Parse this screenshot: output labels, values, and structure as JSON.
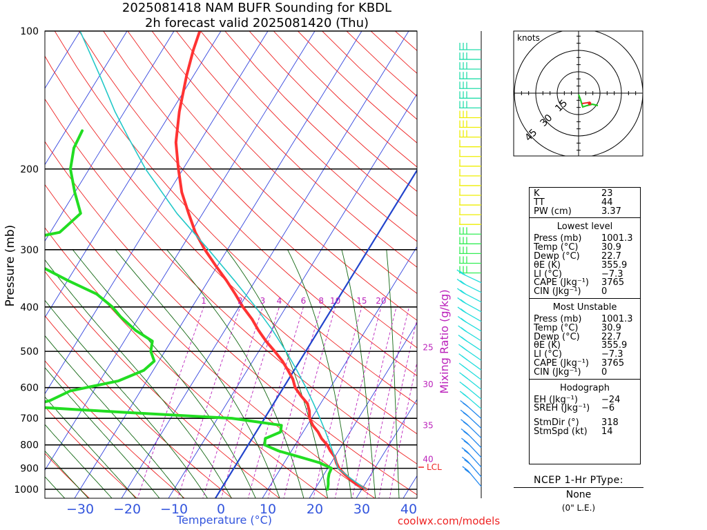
{
  "title": {
    "line1": "2025081418 NAM BUFR Sounding for KBDL",
    "line2": "2h forecast valid 2025081420 (Thu)"
  },
  "chart_data": {
    "type": "line",
    "title": "2025081418 NAM BUFR Sounding for KBDL",
    "subtitle": "2h forecast valid 2025081420 (Thu)",
    "xlabel": "Temperature (°C)",
    "ylabel": "Pressure (mb)",
    "y_scale": "log",
    "y_ticks": [
      100,
      200,
      300,
      400,
      500,
      600,
      700,
      800,
      900,
      1000
    ],
    "x_ticks": [
      -30,
      -20,
      -10,
      0,
      10,
      20,
      30,
      40
    ],
    "mixing_ratio_label": "Mixing Ratio (g/kg)",
    "mixing_ratio_ticks": [
      "1",
      "2",
      "3",
      "4",
      "6",
      "8",
      "10",
      "15",
      "20",
      "25",
      "30",
      "35",
      "40"
    ],
    "lcl_label": "LCL",
    "lcl_pressure": 895,
    "colors": {
      "temperature": "#ff3333",
      "dewpoint": "#22dd22",
      "parcel": "#22c8c8",
      "isotherm": "#3344dd",
      "dry_adiabat": "#ee2222",
      "moist_adiabat": "#116611",
      "mixing_ratio": "#bb22bb",
      "freezing_isotherm": "#2244cc"
    },
    "series": [
      {
        "name": "Temperature",
        "points": [
          [
            1000,
            30.9
          ],
          [
            975,
            28.4
          ],
          [
            950,
            26.2
          ],
          [
            925,
            24.2
          ],
          [
            900,
            22.4
          ],
          [
            875,
            21.1
          ],
          [
            850,
            20.0
          ],
          [
            825,
            18.3
          ],
          [
            800,
            16.8
          ],
          [
            775,
            14.8
          ],
          [
            750,
            13.2
          ],
          [
            725,
            11.2
          ],
          [
            700,
            9.6
          ],
          [
            675,
            8.6
          ],
          [
            650,
            7.2
          ],
          [
            625,
            4.8
          ],
          [
            600,
            2.5
          ],
          [
            575,
            0.9
          ],
          [
            550,
            -1.3
          ],
          [
            525,
            -3.7
          ],
          [
            500,
            -6.6
          ],
          [
            475,
            -9.8
          ],
          [
            450,
            -12.8
          ],
          [
            425,
            -15.7
          ],
          [
            400,
            -19.2
          ],
          [
            375,
            -22.5
          ],
          [
            350,
            -26.2
          ],
          [
            325,
            -30.4
          ],
          [
            300,
            -34.8
          ],
          [
            275,
            -39.1
          ],
          [
            250,
            -43.0
          ],
          [
            225,
            -47.2
          ],
          [
            200,
            -51.0
          ],
          [
            175,
            -55.0
          ],
          [
            150,
            -58.3
          ],
          [
            125,
            -61.5
          ],
          [
            110,
            -63.4
          ],
          [
            100,
            -64.5
          ]
        ]
      },
      {
        "name": "Dewpoint",
        "points": [
          [
            1000,
            22.7
          ],
          [
            975,
            22.2
          ],
          [
            950,
            21.5
          ],
          [
            925,
            21.0
          ],
          [
            900,
            20.8
          ],
          [
            875,
            17.5
          ],
          [
            850,
            12.5
          ],
          [
            825,
            7.3
          ],
          [
            800,
            3.5
          ],
          [
            775,
            2.8
          ],
          [
            750,
            5.2
          ],
          [
            725,
            4.5
          ],
          [
            700,
            -7.0
          ],
          [
            680,
            -30.0
          ],
          [
            660,
            -52.0
          ],
          [
            640,
            -48.0
          ],
          [
            610,
            -45.0
          ],
          [
            580,
            -36.0
          ],
          [
            550,
            -32.0
          ],
          [
            525,
            -31.0
          ],
          [
            500,
            -33.0
          ],
          [
            475,
            -34.0
          ],
          [
            450,
            -39.0
          ],
          [
            420,
            -44.0
          ],
          [
            400,
            -47.0
          ],
          [
            375,
            -52.0
          ],
          [
            350,
            -60.0
          ],
          [
            325,
            -68.0
          ],
          [
            300,
            -76.0
          ],
          [
            290,
            -78.0
          ],
          [
            275,
            -68.0
          ],
          [
            250,
            -66.0
          ],
          [
            225,
            -70.0
          ],
          [
            200,
            -74.0
          ],
          [
            180,
            -76.0
          ],
          [
            165,
            -76.5
          ]
        ]
      },
      {
        "name": "Parcel",
        "points": [
          [
            1000,
            30.9
          ],
          [
            950,
            26.5
          ],
          [
            900,
            22.2
          ],
          [
            850,
            20.0
          ],
          [
            800,
            17.5
          ],
          [
            750,
            14.8
          ],
          [
            700,
            11.8
          ],
          [
            650,
            8.5
          ],
          [
            600,
            4.8
          ],
          [
            550,
            0.6
          ],
          [
            500,
            -4.2
          ],
          [
            450,
            -9.8
          ],
          [
            400,
            -16.5
          ],
          [
            350,
            -24.5
          ],
          [
            300,
            -34.0
          ],
          [
            250,
            -45.5
          ],
          [
            200,
            -58.0
          ],
          [
            170,
            -66.0
          ],
          [
            150,
            -72.0
          ],
          [
            125,
            -80.0
          ],
          [
            100,
            -90.0
          ]
        ]
      }
    ],
    "hodograph": {
      "units": "knots",
      "ring_labels": [
        "15",
        "30",
        "45"
      ]
    },
    "wind_barb_levels": 46
  },
  "indices": {
    "top": [
      {
        "k": "K",
        "v": "23"
      },
      {
        "k": "TT",
        "v": "44"
      },
      {
        "k": "PW (cm)",
        "v": "3.37"
      }
    ],
    "lowest_title": "Lowest level",
    "lowest": [
      {
        "k": "Press (mb)",
        "v": "1001.3"
      },
      {
        "k": "Temp (°C)",
        "v": "30.9"
      },
      {
        "k": "Dewp (°C)",
        "v": "22.7"
      },
      {
        "k": "θE (K)",
        "v": "355.9"
      },
      {
        "k": "LI (°C)",
        "v": "−7.3"
      },
      {
        "k": "CAPE (Jkg⁻¹)",
        "v": "3765"
      },
      {
        "k": "CIN (Jkg⁻¹)",
        "v": "0"
      }
    ],
    "unstable_title": "Most Unstable",
    "unstable": [
      {
        "k": "Press (mb)",
        "v": "1001.3"
      },
      {
        "k": "Temp (°C)",
        "v": "30.9"
      },
      {
        "k": "Dewp (°C)",
        "v": "22.7"
      },
      {
        "k": "θE (K)",
        "v": "355.9"
      },
      {
        "k": "LI (°C)",
        "v": "−7.3"
      },
      {
        "k": "CAPE (Jkg⁻¹)",
        "v": "3765"
      },
      {
        "k": "CIN (Jkg⁻¹)",
        "v": "0"
      }
    ],
    "hodo_title": "Hodograph",
    "hodo": [
      {
        "k": "EH (Jkg⁻¹)",
        "v": "−24"
      },
      {
        "k": "SREH (Jkg⁻¹)",
        "v": "−6"
      }
    ],
    "storm": [
      {
        "k": "StmDir (°)",
        "v": "318"
      },
      {
        "k": "StmSpd (kt)",
        "v": "14"
      }
    ]
  },
  "ptype": {
    "title": "NCEP 1-Hr PType:",
    "value": "None",
    "sub": "(0\" L.E.)"
  },
  "credit": "coolwx.com/models"
}
